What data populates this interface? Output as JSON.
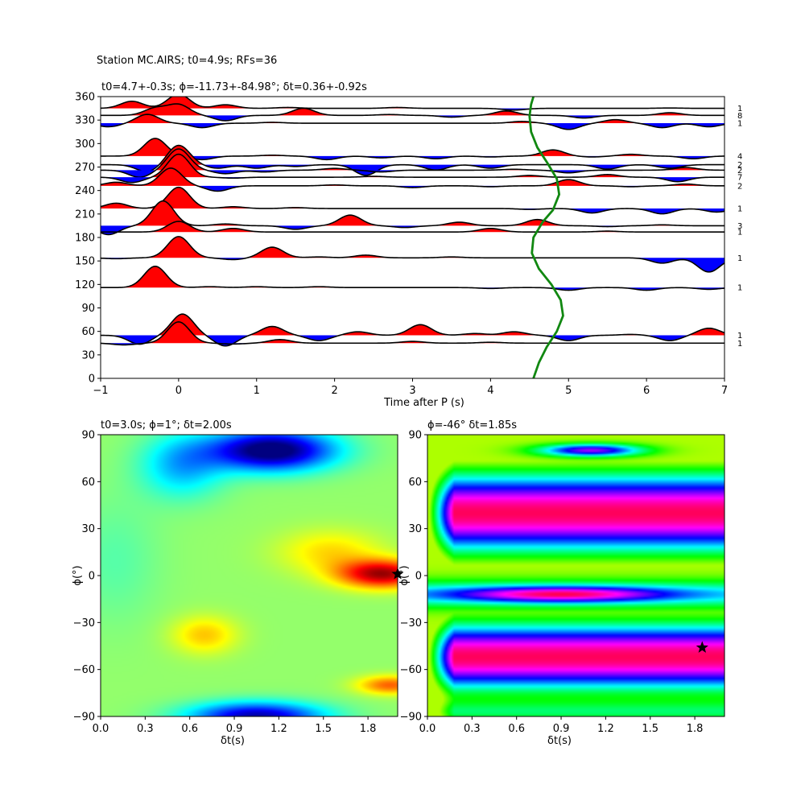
{
  "figure": {
    "suptitle": "Station MC.AIRS; t0=4.9s; RFs=36"
  },
  "chart_data": [
    {
      "type": "line",
      "name": "receiver-function-wiggles",
      "title": "t0=4.7+-0.3s; ϕ=-11.73+-84.98°; δt=0.36+-0.92s",
      "xlabel": "Time after P (s)",
      "ylabel": "",
      "xlim": [
        -1,
        7
      ],
      "ylim": [
        0,
        360
      ],
      "xticks": [
        "−1",
        "0",
        "1",
        "2",
        "3",
        "4",
        "5",
        "6",
        "7"
      ],
      "yticks": [
        "0",
        "30",
        "60",
        "90",
        "120",
        "150",
        "180",
        "210",
        "240",
        "270",
        "300",
        "330",
        "360"
      ],
      "traces": [
        {
          "baz": 345,
          "count": "1",
          "peaks": [
            [
              -0.6,
              0.4
            ],
            [
              0.0,
              0.8
            ],
            [
              0.6,
              0.2
            ],
            [
              1.4,
              0.05
            ],
            [
              2.8,
              0.05
            ],
            [
              4.3,
              -0.1
            ],
            [
              6.3,
              0.02
            ]
          ]
        },
        {
          "baz": 336,
          "count": "8",
          "peaks": [
            [
              -0.3,
              0.4
            ],
            [
              0.0,
              0.6
            ],
            [
              0.6,
              -0.3
            ],
            [
              1.6,
              0.4
            ],
            [
              2.7,
              0.05
            ],
            [
              3.5,
              -0.1
            ],
            [
              4.2,
              0.25
            ],
            [
              5.2,
              -0.15
            ],
            [
              6.3,
              0.15
            ]
          ]
        },
        {
          "baz": 326,
          "count": "1",
          "peaks": [
            [
              -0.9,
              -0.2
            ],
            [
              -0.4,
              0.5
            ],
            [
              0.3,
              -0.25
            ],
            [
              1.2,
              0.05
            ],
            [
              3.5,
              0.0
            ],
            [
              4.4,
              0.1
            ],
            [
              5.0,
              -0.35
            ],
            [
              5.6,
              0.2
            ],
            [
              6.2,
              -0.25
            ],
            [
              6.8,
              -0.2
            ]
          ]
        },
        {
          "baz": 284,
          "count": "4",
          "peaks": [
            [
              -0.3,
              1.0
            ],
            [
              0.3,
              -0.2
            ],
            [
              0.7,
              0.0
            ],
            [
              1.2,
              0.05
            ],
            [
              1.9,
              -0.2
            ],
            [
              2.6,
              -0.1
            ],
            [
              3.3,
              -0.15
            ],
            [
              4.0,
              -0.05
            ],
            [
              4.8,
              0.35
            ],
            [
              5.3,
              -0.05
            ],
            [
              5.8,
              0.1
            ],
            [
              6.6,
              -0.15
            ]
          ]
        },
        {
          "baz": 273,
          "count": "2",
          "peaks": [
            [
              -0.4,
              -0.4
            ],
            [
              0.0,
              1.1
            ],
            [
              0.5,
              -0.2
            ],
            [
              1.0,
              -0.2
            ],
            [
              1.5,
              -0.1
            ],
            [
              2.4,
              -0.6
            ],
            [
              3.3,
              -0.3
            ],
            [
              4.0,
              -0.2
            ],
            [
              4.8,
              0.0
            ],
            [
              5.5,
              -0.25
            ],
            [
              6.3,
              -0.2
            ]
          ]
        },
        {
          "baz": 266,
          "count": "2",
          "peaks": [
            [
              -0.5,
              -0.4
            ],
            [
              0.0,
              1.2
            ],
            [
              0.6,
              -0.2
            ],
            [
              1.1,
              -0.1
            ],
            [
              2.0,
              0.1
            ],
            [
              2.6,
              -0.1
            ],
            [
              3.5,
              0.0
            ],
            [
              4.3,
              0.05
            ],
            [
              5.0,
              -0.15
            ],
            [
              5.9,
              0.0
            ],
            [
              6.5,
              0.15
            ]
          ]
        },
        {
          "baz": 257,
          "count": "7",
          "peaks": [
            [
              -0.6,
              -0.3
            ],
            [
              0.0,
              1.3
            ],
            [
              0.7,
              -0.05
            ],
            [
              2.5,
              0.05
            ],
            [
              3.5,
              0.0
            ],
            [
              4.5,
              0.1
            ],
            [
              5.5,
              0.15
            ],
            [
              6.4,
              -0.25
            ]
          ]
        },
        {
          "baz": 246,
          "count": "2",
          "peaks": [
            [
              -0.8,
              0.2
            ],
            [
              -0.1,
              1.0
            ],
            [
              0.5,
              -0.3
            ],
            [
              1.0,
              0.0
            ],
            [
              2.0,
              0.05
            ],
            [
              3.0,
              -0.1
            ],
            [
              4.0,
              -0.05
            ],
            [
              5.0,
              0.35
            ],
            [
              5.8,
              -0.05
            ],
            [
              6.5,
              0.1
            ]
          ]
        },
        {
          "baz": 217,
          "count": "1",
          "peaks": [
            [
              -0.8,
              0.3
            ],
            [
              0.0,
              1.2
            ],
            [
              0.7,
              0.1
            ],
            [
              1.5,
              0.05
            ],
            [
              2.5,
              0.0
            ],
            [
              3.5,
              0.0
            ],
            [
              4.5,
              -0.05
            ],
            [
              5.3,
              -0.25
            ],
            [
              6.2,
              -0.3
            ],
            [
              6.9,
              -0.2
            ]
          ]
        },
        {
          "baz": 195,
          "count": "3",
          "peaks": [
            [
              -0.9,
              -0.5
            ],
            [
              -0.2,
              1.4
            ],
            [
              0.6,
              0.1
            ],
            [
              1.5,
              -0.2
            ],
            [
              2.2,
              0.6
            ],
            [
              2.9,
              -0.1
            ],
            [
              3.6,
              0.2
            ],
            [
              4.6,
              0.35
            ],
            [
              5.5,
              -0.05
            ],
            [
              6.2,
              0.05
            ],
            [
              6.8,
              0.0
            ]
          ]
        },
        {
          "baz": 187,
          "count": "1",
          "peaks": [
            [
              -0.9,
              0.0
            ],
            [
              0.0,
              0.6
            ],
            [
              0.7,
              0.2
            ],
            [
              1.5,
              0.0
            ],
            [
              2.5,
              0.0
            ],
            [
              4.0,
              0.2
            ],
            [
              5.5,
              0.05
            ],
            [
              6.3,
              0.0
            ],
            [
              6.9,
              0.0
            ]
          ]
        },
        {
          "baz": 154,
          "count": "1",
          "peaks": [
            [
              -0.8,
              -0.05
            ],
            [
              0.0,
              1.2
            ],
            [
              0.7,
              -0.1
            ],
            [
              1.2,
              0.6
            ],
            [
              1.8,
              0.05
            ],
            [
              2.4,
              0.15
            ],
            [
              3.5,
              0.05
            ],
            [
              4.5,
              0.0
            ],
            [
              5.5,
              0.0
            ],
            [
              6.2,
              -0.3
            ],
            [
              6.8,
              -0.8
            ]
          ]
        },
        {
          "baz": 116,
          "count": "1",
          "peaks": [
            [
              -0.3,
              1.2
            ],
            [
              0.4,
              0.05
            ],
            [
              1.0,
              0.05
            ],
            [
              1.8,
              0.05
            ],
            [
              3.0,
              0.0
            ],
            [
              4.0,
              -0.05
            ],
            [
              5.0,
              -0.15
            ],
            [
              6.0,
              -0.15
            ],
            [
              6.8,
              -0.1
            ]
          ]
        },
        {
          "baz": 55,
          "count": "1",
          "peaks": [
            [
              -0.5,
              -0.5
            ],
            [
              0.05,
              1.2
            ],
            [
              0.6,
              -0.6
            ],
            [
              1.2,
              0.5
            ],
            [
              1.8,
              -0.3
            ],
            [
              2.3,
              0.2
            ],
            [
              3.1,
              0.6
            ],
            [
              3.8,
              0.1
            ],
            [
              4.3,
              0.2
            ],
            [
              5.0,
              -0.3
            ],
            [
              5.8,
              0.05
            ],
            [
              6.3,
              -0.3
            ],
            [
              6.8,
              0.4
            ]
          ]
        },
        {
          "baz": 45,
          "count": "1",
          "peaks": [
            [
              -0.7,
              -0.1
            ],
            [
              0.0,
              1.2
            ],
            [
              0.7,
              -0.05
            ],
            [
              1.3,
              0.2
            ],
            [
              2.0,
              0.0
            ],
            [
              3.0,
              0.1
            ],
            [
              4.0,
              0.05
            ],
            [
              5.0,
              0.0
            ],
            [
              6.0,
              0.0
            ],
            [
              6.8,
              0.0
            ]
          ]
        }
      ],
      "t0_curve": {
        "color": "#118811",
        "points": [
          [
            4.55,
            0
          ],
          [
            4.62,
            20
          ],
          [
            4.72,
            40
          ],
          [
            4.85,
            60
          ],
          [
            4.93,
            80
          ],
          [
            4.9,
            100
          ],
          [
            4.78,
            120
          ],
          [
            4.62,
            140
          ],
          [
            4.53,
            160
          ],
          [
            4.55,
            180
          ],
          [
            4.67,
            200
          ],
          [
            4.8,
            215
          ],
          [
            4.88,
            235
          ],
          [
            4.85,
            255
          ],
          [
            4.73,
            275
          ],
          [
            4.6,
            295
          ],
          [
            4.52,
            315
          ],
          [
            4.5,
            335
          ],
          [
            4.52,
            350
          ],
          [
            4.55,
            360
          ]
        ]
      },
      "colors": {
        "positive": "#ff0000",
        "negative": "#0000ff",
        "line": "#000000"
      }
    },
    {
      "type": "heatmap",
      "name": "energy-grid-left",
      "title": "t0=3.0s; ϕ=1°; δt=2.00s",
      "xlabel": "δt(s)",
      "ylabel": "ϕ(°)",
      "xlim": [
        0,
        2
      ],
      "ylim": [
        -90,
        90
      ],
      "xticks": [
        "0.0",
        "0.3",
        "0.6",
        "0.9",
        "1.2",
        "1.5",
        "1.8"
      ],
      "yticks": [
        "−90",
        "−60",
        "−30",
        "0",
        "30",
        "60",
        "90"
      ],
      "colormap": "jet",
      "best": {
        "dt": 2.0,
        "phi": 1
      },
      "base": 0.52,
      "blobs": [
        {
          "dt": 1.15,
          "phi": 80,
          "amp": -0.58,
          "sdt": 0.42,
          "sphi": 13
        },
        {
          "dt": 0.55,
          "phi": 70,
          "amp": -0.22,
          "sdt": 0.28,
          "sphi": 20
        },
        {
          "dt": 1.05,
          "phi": -90,
          "amp": -0.48,
          "sdt": 0.45,
          "sphi": 9
        },
        {
          "dt": 1.9,
          "phi": 1,
          "amp": 0.44,
          "sdt": 0.3,
          "sphi": 9
        },
        {
          "dt": 1.55,
          "phi": 15,
          "amp": 0.14,
          "sdt": 0.35,
          "sphi": 14
        },
        {
          "dt": 0.7,
          "phi": -38,
          "amp": 0.16,
          "sdt": 0.22,
          "sphi": 12
        },
        {
          "dt": 1.95,
          "phi": -70,
          "amp": 0.26,
          "sdt": 0.22,
          "sphi": 6
        },
        {
          "dt": 0.1,
          "phi": 10,
          "amp": -0.06,
          "sdt": 0.3,
          "sphi": 40
        }
      ]
    },
    {
      "type": "heatmap",
      "name": "energy-grid-right",
      "title": "ϕ=-46° δt=1.85s",
      "xlabel": "δt(s)",
      "ylabel": "ϕ(°)",
      "xlim": [
        0,
        2
      ],
      "ylim": [
        -90,
        90
      ],
      "xticks": [
        "0.0",
        "0.3",
        "0.6",
        "0.9",
        "1.2",
        "1.5",
        "1.8"
      ],
      "yticks": [
        "−90",
        "−60",
        "−30",
        "0",
        "30",
        "60",
        "90"
      ],
      "colormap": "hsv",
      "best": {
        "dt": 1.85,
        "phi": -46
      }
    }
  ]
}
